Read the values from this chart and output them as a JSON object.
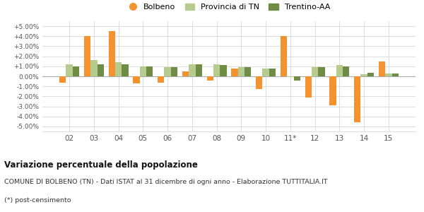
{
  "years": [
    "02",
    "03",
    "04",
    "05",
    "06",
    "07",
    "08",
    "09",
    "10",
    "11*",
    "12",
    "13",
    "14",
    "15"
  ],
  "bolbeno": [
    -0.6,
    4.0,
    4.5,
    -0.7,
    -0.6,
    0.5,
    -0.4,
    0.8,
    -1.3,
    4.0,
    -2.1,
    -2.9,
    -4.6,
    1.5
  ],
  "provincia_tn": [
    1.2,
    1.6,
    1.4,
    1.0,
    0.9,
    1.2,
    1.2,
    0.9,
    0.8,
    -0.1,
    0.9,
    1.1,
    0.2,
    0.3
  ],
  "trentino_aa": [
    1.0,
    1.2,
    1.2,
    1.0,
    0.9,
    1.2,
    1.1,
    0.9,
    0.8,
    -0.4,
    0.9,
    1.0,
    0.35,
    0.25
  ],
  "color_bolbeno": "#f5922e",
  "color_provincia": "#b5cc8e",
  "color_trentino": "#6e8c44",
  "title": "Variazione percentuale della popolazione",
  "subtitle": "COMUNE DI BOLBENO (TN) - Dati ISTAT al 31 dicembre di ogni anno - Elaborazione TUTTITALIA.IT",
  "footnote": "(*) post-censimento",
  "legend_bolbeno": "Bolbeno",
  "legend_provincia": "Provincia di TN",
  "legend_trentino": "Trentino-AA",
  "ylim": [
    -5.5,
    5.5
  ],
  "yticks": [
    -5.0,
    -4.0,
    -3.0,
    -2.0,
    -1.0,
    0.0,
    1.0,
    2.0,
    3.0,
    4.0,
    5.0
  ],
  "ytick_labels": [
    "-5.00%",
    "-4.00%",
    "-3.00%",
    "-2.00%",
    "-1.00%",
    "0.00%",
    "+1.00%",
    "+2.00%",
    "+3.00%",
    "+4.00%",
    "+5.00%"
  ],
  "background_color": "#ffffff",
  "grid_color": "#dddddd"
}
